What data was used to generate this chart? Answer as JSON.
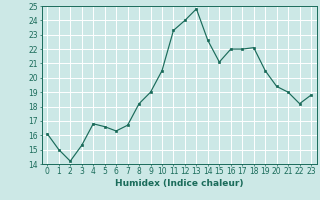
{
  "x": [
    0,
    1,
    2,
    3,
    4,
    5,
    6,
    7,
    8,
    9,
    10,
    11,
    12,
    13,
    14,
    15,
    16,
    17,
    18,
    19,
    20,
    21,
    22,
    23
  ],
  "y": [
    16.1,
    15.0,
    14.2,
    15.3,
    16.8,
    16.6,
    16.3,
    16.7,
    18.2,
    19.0,
    20.5,
    23.3,
    24.0,
    24.8,
    22.6,
    21.1,
    22.0,
    22.0,
    22.1,
    20.5,
    19.4,
    19.0,
    18.2,
    18.8
  ],
  "xlabel": "Humidex (Indice chaleur)",
  "ylim": [
    14,
    25
  ],
  "xlim": [
    -0.5,
    23.5
  ],
  "yticks": [
    14,
    15,
    16,
    17,
    18,
    19,
    20,
    21,
    22,
    23,
    24,
    25
  ],
  "xticks": [
    0,
    1,
    2,
    3,
    4,
    5,
    6,
    7,
    8,
    9,
    10,
    11,
    12,
    13,
    14,
    15,
    16,
    17,
    18,
    19,
    20,
    21,
    22,
    23
  ],
  "line_color": "#1a6b5a",
  "marker_color": "#1a6b5a",
  "bg_color": "#cce8e6",
  "grid_color": "#ffffff",
  "label_fontsize": 6.5,
  "tick_fontsize": 5.5
}
